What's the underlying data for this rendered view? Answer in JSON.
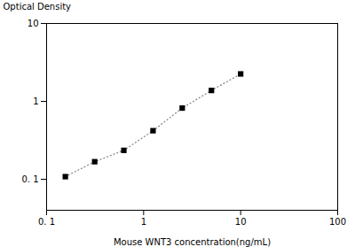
{
  "chart_data": {
    "type": "line",
    "x": [
      0.156,
      0.313,
      0.625,
      1.25,
      2.5,
      5.0,
      10.0
    ],
    "values": [
      0.108,
      0.168,
      0.235,
      0.42,
      0.82,
      1.38,
      2.25
    ],
    "xlabel": "Mouse WNT3 concentration(ng/mL)",
    "ylabel": "Optical Density",
    "log": true,
    "xlim": [
      0.1,
      100
    ],
    "ylim": [
      0.04,
      10
    ],
    "xticks": [
      {
        "value": 0.1,
        "label": "0. 1"
      },
      1,
      10,
      100
    ],
    "yticks": [
      {
        "value": 0.1,
        "label": "0. 1"
      },
      1,
      10
    ],
    "marker": "square",
    "line_style": "dotted",
    "grid": false
  }
}
